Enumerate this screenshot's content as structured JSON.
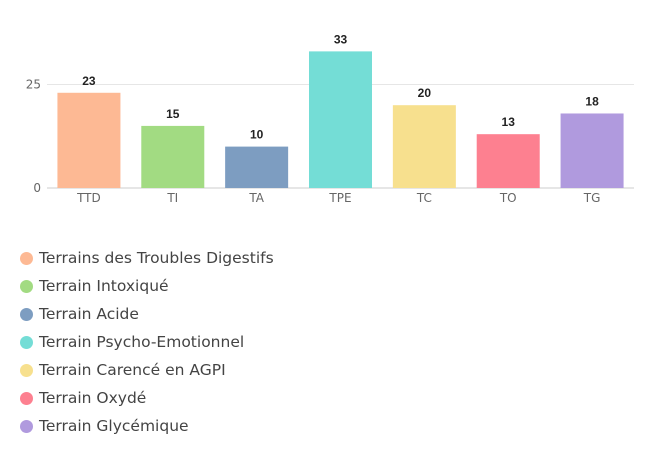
{
  "chart_data": {
    "type": "bar",
    "categories": [
      "TTD",
      "TI",
      "TA",
      "TPE",
      "TC",
      "TO",
      "TG"
    ],
    "values": [
      23,
      15,
      10,
      33,
      20,
      13,
      18
    ],
    "colors": [
      "#fdb994",
      "#a2db82",
      "#7d9dc1",
      "#74ddd6",
      "#f7e08e",
      "#fd8090",
      "#b09ade"
    ],
    "yticks": [
      0,
      25
    ],
    "ylim": [
      0,
      35
    ],
    "grid": true,
    "legend_position": "bottom-left",
    "legend": [
      "Terrains des Troubles Digestifs",
      "Terrain Intoxiqué",
      "Terrain Acide",
      "Terrain Psycho-Emotionnel",
      "Terrain Carencé en AGPI",
      "Terrain Oxydé",
      "Terrain Glycémique"
    ]
  }
}
